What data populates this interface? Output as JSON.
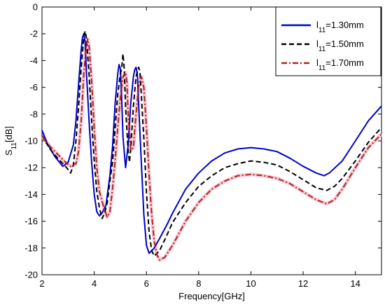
{
  "chart_data": {
    "type": "line",
    "title": "",
    "xlabel": "Frequency[GHz]",
    "ylabel_main": "S",
    "ylabel_sub": "11",
    "ylabel_unit": "[dB]",
    "xlim": [
      2,
      15
    ],
    "ylim": [
      -20,
      0
    ],
    "xticks": [
      "2",
      "4",
      "6",
      "8",
      "10",
      "12",
      "14"
    ],
    "yticks": [
      "0",
      "-2",
      "-4",
      "-6",
      "-8",
      "-10",
      "-12",
      "-14",
      "-16",
      "-18",
      "-20"
    ],
    "grid": false,
    "legend_position": "top-right",
    "series": [
      {
        "name_main": "l",
        "name_sub": "11",
        "name_rest": "=1.30mm",
        "color": "#0000cc",
        "dash": "solid",
        "points": [
          [
            2.0,
            -9.2
          ],
          [
            2.2,
            -10.2
          ],
          [
            2.5,
            -11.2
          ],
          [
            2.8,
            -11.9
          ],
          [
            3.0,
            -11.6
          ],
          [
            3.2,
            -10.3
          ],
          [
            3.3,
            -8.5
          ],
          [
            3.4,
            -5.8
          ],
          [
            3.5,
            -3.2
          ],
          [
            3.55,
            -2.3
          ],
          [
            3.6,
            -2.0
          ],
          [
            3.65,
            -2.6
          ],
          [
            3.7,
            -4.8
          ],
          [
            3.8,
            -8.5
          ],
          [
            3.9,
            -11.6
          ],
          [
            4.0,
            -14.0
          ],
          [
            4.1,
            -15.3
          ],
          [
            4.2,
            -15.6
          ],
          [
            4.3,
            -15.4
          ],
          [
            4.45,
            -14.8
          ],
          [
            4.6,
            -12.6
          ],
          [
            4.7,
            -10.5
          ],
          [
            4.8,
            -7.2
          ],
          [
            4.9,
            -5.0
          ],
          [
            4.95,
            -4.3
          ],
          [
            5.0,
            -4.6
          ],
          [
            5.05,
            -6.8
          ],
          [
            5.1,
            -9.7
          ],
          [
            5.2,
            -12.0
          ],
          [
            5.3,
            -10.3
          ],
          [
            5.4,
            -7.2
          ],
          [
            5.5,
            -5.2
          ],
          [
            5.55,
            -4.7
          ],
          [
            5.6,
            -4.5
          ],
          [
            5.65,
            -5.0
          ],
          [
            5.7,
            -7.2
          ],
          [
            5.8,
            -11.5
          ],
          [
            5.9,
            -15.5
          ],
          [
            6.0,
            -17.8
          ],
          [
            6.1,
            -18.4
          ],
          [
            6.3,
            -18.0
          ],
          [
            6.5,
            -17.3
          ],
          [
            6.8,
            -16.2
          ],
          [
            7.0,
            -15.4
          ],
          [
            7.5,
            -13.6
          ],
          [
            8.0,
            -12.4
          ],
          [
            8.5,
            -11.5
          ],
          [
            9.0,
            -10.9
          ],
          [
            9.5,
            -10.6
          ],
          [
            10.0,
            -10.5
          ],
          [
            10.5,
            -10.6
          ],
          [
            11.0,
            -10.8
          ],
          [
            11.5,
            -11.3
          ],
          [
            12.0,
            -11.9
          ],
          [
            12.5,
            -12.4
          ],
          [
            12.8,
            -12.6
          ],
          [
            13.0,
            -12.4
          ],
          [
            13.5,
            -11.5
          ],
          [
            14.0,
            -10.0
          ],
          [
            14.5,
            -8.5
          ],
          [
            15.0,
            -7.4
          ]
        ]
      },
      {
        "name_main": "l",
        "name_sub": "11",
        "name_rest": "=1.50mm",
        "color": "#000000",
        "dash": "dashed",
        "points": [
          [
            2.0,
            -9.6
          ],
          [
            2.3,
            -10.6
          ],
          [
            2.6,
            -11.3
          ],
          [
            2.9,
            -11.9
          ],
          [
            3.1,
            -12.4
          ],
          [
            3.2,
            -11.8
          ],
          [
            3.3,
            -10.0
          ],
          [
            3.4,
            -7.5
          ],
          [
            3.5,
            -4.5
          ],
          [
            3.6,
            -2.3
          ],
          [
            3.65,
            -1.8
          ],
          [
            3.7,
            -2.3
          ],
          [
            3.8,
            -5.0
          ],
          [
            3.9,
            -8.5
          ],
          [
            4.0,
            -11.5
          ],
          [
            4.1,
            -13.8
          ],
          [
            4.2,
            -15.0
          ],
          [
            4.3,
            -15.8
          ],
          [
            4.4,
            -15.4
          ],
          [
            4.5,
            -14.6
          ],
          [
            4.6,
            -13.0
          ],
          [
            4.7,
            -11.6
          ],
          [
            4.8,
            -9.0
          ],
          [
            4.9,
            -6.5
          ],
          [
            5.0,
            -5.0
          ],
          [
            5.05,
            -4.6
          ],
          [
            5.1,
            -3.5
          ],
          [
            5.15,
            -4.6
          ],
          [
            5.2,
            -7.5
          ],
          [
            5.3,
            -10.8
          ],
          [
            5.35,
            -11.6
          ],
          [
            5.4,
            -10.5
          ],
          [
            5.5,
            -7.4
          ],
          [
            5.6,
            -5.2
          ],
          [
            5.7,
            -4.5
          ],
          [
            5.75,
            -4.8
          ],
          [
            5.8,
            -6.5
          ],
          [
            5.9,
            -9.8
          ],
          [
            6.0,
            -13.8
          ],
          [
            6.1,
            -16.8
          ],
          [
            6.2,
            -18.2
          ],
          [
            6.3,
            -18.6
          ],
          [
            6.5,
            -18.2
          ],
          [
            6.7,
            -17.4
          ],
          [
            7.0,
            -16.1
          ],
          [
            7.5,
            -14.6
          ],
          [
            8.0,
            -13.4
          ],
          [
            8.5,
            -12.6
          ],
          [
            9.0,
            -12.0
          ],
          [
            9.5,
            -11.7
          ],
          [
            10.0,
            -11.5
          ],
          [
            10.5,
            -11.6
          ],
          [
            11.0,
            -11.8
          ],
          [
            11.5,
            -12.3
          ],
          [
            12.0,
            -12.9
          ],
          [
            12.5,
            -13.5
          ],
          [
            12.9,
            -13.7
          ],
          [
            13.2,
            -13.4
          ],
          [
            13.5,
            -12.8
          ],
          [
            14.0,
            -11.5
          ],
          [
            14.5,
            -10.1
          ],
          [
            15.0,
            -9.0
          ]
        ]
      },
      {
        "name_main": "l",
        "name_sub": "11",
        "name_rest": "=1.70mm",
        "color": "#b22222",
        "dash": "dashdot",
        "points": [
          [
            2.0,
            -9.6
          ],
          [
            2.3,
            -10.4
          ],
          [
            2.6,
            -11.0
          ],
          [
            2.9,
            -11.6
          ],
          [
            3.1,
            -11.9
          ],
          [
            3.3,
            -11.7
          ],
          [
            3.4,
            -10.8
          ],
          [
            3.5,
            -8.5
          ],
          [
            3.6,
            -5.0
          ],
          [
            3.7,
            -2.8
          ],
          [
            3.75,
            -2.4
          ],
          [
            3.8,
            -2.9
          ],
          [
            3.9,
            -5.5
          ],
          [
            4.0,
            -9.0
          ],
          [
            4.1,
            -12.0
          ],
          [
            4.2,
            -13.8
          ],
          [
            4.4,
            -15.2
          ],
          [
            4.5,
            -15.7
          ],
          [
            4.6,
            -15.3
          ],
          [
            4.7,
            -13.6
          ],
          [
            4.8,
            -11.5
          ],
          [
            4.9,
            -9.0
          ],
          [
            5.0,
            -6.8
          ],
          [
            5.1,
            -5.2
          ],
          [
            5.2,
            -4.9
          ],
          [
            5.25,
            -5.6
          ],
          [
            5.3,
            -8.0
          ],
          [
            5.4,
            -10.7
          ],
          [
            5.5,
            -10.5
          ],
          [
            5.6,
            -8.0
          ],
          [
            5.7,
            -6.0
          ],
          [
            5.75,
            -5.4
          ],
          [
            5.8,
            -5.2
          ],
          [
            5.9,
            -6.0
          ],
          [
            6.0,
            -9.0
          ],
          [
            6.1,
            -12.5
          ],
          [
            6.2,
            -15.5
          ],
          [
            6.3,
            -17.5
          ],
          [
            6.4,
            -18.5
          ],
          [
            6.5,
            -18.9
          ],
          [
            6.7,
            -18.7
          ],
          [
            7.0,
            -17.8
          ],
          [
            7.5,
            -16.0
          ],
          [
            8.0,
            -14.6
          ],
          [
            8.5,
            -13.6
          ],
          [
            9.0,
            -13.0
          ],
          [
            9.5,
            -12.6
          ],
          [
            10.0,
            -12.5
          ],
          [
            10.5,
            -12.6
          ],
          [
            11.0,
            -12.8
          ],
          [
            11.5,
            -13.2
          ],
          [
            12.0,
            -13.8
          ],
          [
            12.5,
            -14.4
          ],
          [
            12.9,
            -14.7
          ],
          [
            13.2,
            -14.4
          ],
          [
            13.5,
            -13.6
          ],
          [
            14.0,
            -12.0
          ],
          [
            14.5,
            -10.5
          ],
          [
            15.0,
            -9.5
          ]
        ]
      }
    ]
  }
}
